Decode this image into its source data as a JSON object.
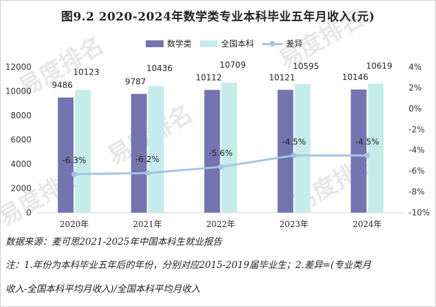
{
  "title": "图9.2  2020-2024年数学类专业本科毕业五年月收入(元)",
  "watermark": "易度排名 · Ranking.cn",
  "chart_data": {
    "type": "bar",
    "categories": [
      "2020年",
      "2021年",
      "2022年",
      "2023年",
      "2024年"
    ],
    "series": [
      {
        "name": "数学类",
        "values": [
          9486,
          9787,
          10112,
          10121,
          10146
        ],
        "color": "#7474b0"
      },
      {
        "name": "全国本科",
        "values": [
          10123,
          10436,
          10709,
          10595,
          10619
        ],
        "color": "#c5ecea"
      }
    ],
    "line_series": {
      "name": "差异",
      "values": [
        -6.3,
        -6.2,
        -5.6,
        -4.5,
        -4.5
      ],
      "labels": [
        "-6.3%",
        "-6.2%",
        "-5.6%",
        "-4.5%",
        "-4.5%"
      ],
      "color": "#a6c4e4",
      "axis": "right"
    },
    "y_left": {
      "range": [
        0,
        12000
      ],
      "ticks": [
        "0",
        "2000",
        "4000",
        "6000",
        "8000",
        "10000",
        "12000"
      ]
    },
    "y_right": {
      "range": [
        -10,
        4
      ],
      "ticks": [
        "-10%",
        "-8%",
        "-6%",
        "-4%",
        "-2%",
        "0%",
        "2%",
        "4%"
      ]
    },
    "legend": "top-center",
    "grid": false
  },
  "footer": {
    "source": "数据来源：麦可思2021-2025年中国本科生就业报告",
    "note_line1": "注：1.年份为本科毕业五年后的年份，分别对应2015-2019届毕业生；2.差异=(专业类月",
    "note_line2": "收入-全国本科平均月收入)/全国本科平均月收入"
  }
}
